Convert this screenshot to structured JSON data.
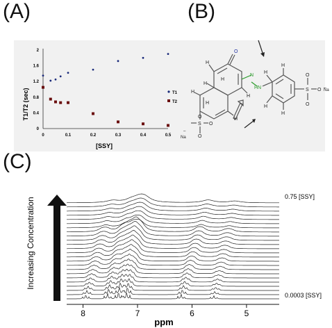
{
  "panels": {
    "a": "(A)",
    "b": "(B)",
    "c": "(C)"
  },
  "chart_data": [
    {
      "type": "scatter",
      "xlabel": "[SSY]",
      "ylabel": "T1/T2 (sec)",
      "xlim": [
        0,
        0.5
      ],
      "ylim": [
        0,
        2
      ],
      "xticks": [
        "0",
        "0.1",
        "0.2",
        "0.3",
        "0.4",
        "0.5"
      ],
      "yticks": [
        "0",
        "0.4",
        "0.8",
        "1.2",
        "1.6",
        "2"
      ],
      "legend": "right",
      "series": [
        {
          "name": "T1",
          "color": "#1a2a7a",
          "x": [
            0,
            0.03,
            0.05,
            0.07,
            0.1,
            0.2,
            0.3,
            0.4,
            0.5
          ],
          "y": [
            1.35,
            1.22,
            1.25,
            1.33,
            1.42,
            1.5,
            1.72,
            1.8,
            1.9
          ]
        },
        {
          "name": "T2",
          "color": "#6b1010",
          "x": [
            0,
            0.03,
            0.05,
            0.07,
            0.1,
            0.2,
            0.3,
            0.4,
            0.5
          ],
          "y": [
            1.05,
            0.75,
            0.68,
            0.66,
            0.66,
            0.38,
            0.17,
            0.12,
            0.08
          ]
        }
      ]
    },
    {
      "type": "line",
      "xlabel": "ppm",
      "ylabel": "Increasing Concentration",
      "xlim": [
        8.3,
        4.4
      ],
      "xticks": [
        "8",
        "7",
        "6",
        "5"
      ],
      "top_label": "0.75 [SSY]",
      "bottom_label": "0.0003 [SSY]",
      "trace_count": 24
    }
  ],
  "structure": {
    "atoms": {
      "o_top": "O",
      "h1": "H",
      "h2": "H",
      "h3": "H",
      "h4": "H",
      "h5": "H",
      "h6": "H",
      "h7": "H",
      "h8": "H",
      "h9": "H",
      "h10": "H",
      "h11": "H",
      "n1": "N",
      "hn": "HN",
      "s1": "S",
      "s2": "S",
      "o1": "O",
      "o2": "O",
      "o3": "O",
      "o4": "O",
      "o5": "O",
      "o6": "O",
      "na1": "Na",
      "na2": "Na"
    },
    "charges": {
      "minus1": "–",
      "minus2": "–",
      "plus": "+"
    },
    "colors": {
      "azo": "#2a9a2a",
      "carbonyl": "#2030a0"
    }
  }
}
